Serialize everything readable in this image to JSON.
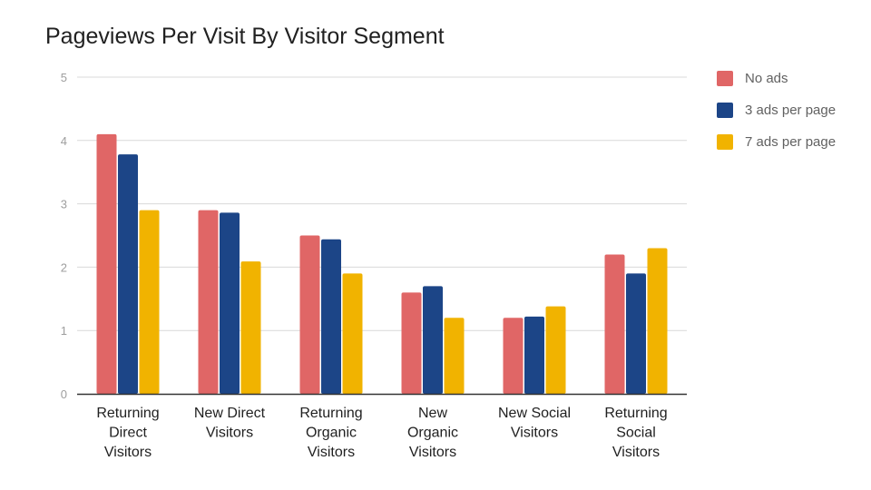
{
  "chart_data": {
    "type": "bar",
    "title": "Pageviews Per Visit By Visitor Segment",
    "xlabel": "",
    "ylabel": "",
    "ylim": [
      0,
      5
    ],
    "yticks": [
      "0",
      "1",
      "2",
      "3",
      "4",
      "5"
    ],
    "grid": true,
    "legend_position": "right",
    "categories": [
      [
        "Returning",
        "Direct",
        "Visitors"
      ],
      [
        "New Direct",
        "Visitors"
      ],
      [
        "Returning",
        "Organic",
        "Visitors"
      ],
      [
        "New",
        "Organic",
        "Visitors"
      ],
      [
        "New Social",
        "Visitors"
      ],
      [
        "Returning",
        "Social",
        "Visitors"
      ]
    ],
    "series": [
      {
        "name": "No ads",
        "color": "#e06666",
        "values": [
          4.1,
          2.9,
          2.5,
          1.6,
          1.2,
          2.2
        ]
      },
      {
        "name": "3 ads per page",
        "color": "#1c4587",
        "values": [
          3.78,
          2.86,
          2.44,
          1.7,
          1.22,
          1.9
        ]
      },
      {
        "name": "7 ads per page",
        "color": "#f1b300",
        "values": [
          2.9,
          2.09,
          1.9,
          1.2,
          1.38,
          2.3
        ]
      }
    ]
  }
}
